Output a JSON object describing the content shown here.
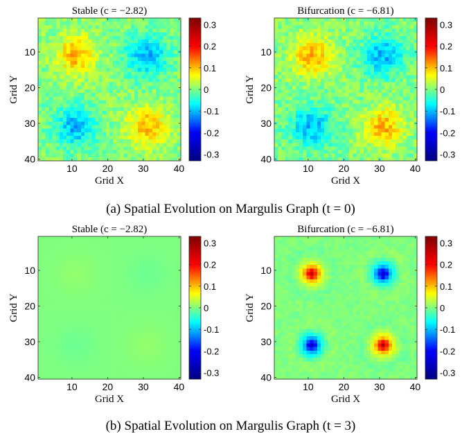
{
  "figure": {
    "caption_a": "(a) Spatial Evolution on Margulis Graph (t = 0)",
    "caption_b": "(b) Spatial Evolution on Margulis Graph (t = 3)"
  },
  "colormap": {
    "name": "jet",
    "stops": [
      "#00007f",
      "#0000ff",
      "#00ffff",
      "#ffff00",
      "#ff0000",
      "#7f0000"
    ]
  },
  "chart_data": [
    {
      "type": "heatmap",
      "panel": "a-left",
      "title": "Stable (c = −2.82)",
      "xlabel": "Grid X",
      "ylabel": "Grid Y",
      "grid_size": [
        40,
        40
      ],
      "xlim": [
        0.5,
        40.5
      ],
      "ylim": [
        0.5,
        40.5
      ],
      "x_ticks": [
        10,
        20,
        30,
        40
      ],
      "y_ticks": [
        10,
        20,
        30,
        40
      ],
      "y_axis_direction": "down",
      "color_limits": [
        -0.33,
        0.33
      ],
      "colorbar_ticks": [
        "0.3",
        "0.2",
        "0.1",
        "0",
        "-0.1",
        "-0.2",
        "-0.3"
      ],
      "field": {
        "pattern": "four blobs at (x,y)",
        "centers": [
          {
            "x": 11,
            "y": 11,
            "v": 0.13
          },
          {
            "x": 31,
            "y": 11,
            "v": -0.13
          },
          {
            "x": 11,
            "y": 31,
            "v": -0.13
          },
          {
            "x": 31,
            "y": 31,
            "v": 0.13
          }
        ],
        "noise": 0.04
      }
    },
    {
      "type": "heatmap",
      "panel": "a-right",
      "title": "Bifurcation (c = −6.81)",
      "xlabel": "Grid X",
      "ylabel": "Grid Y",
      "grid_size": [
        40,
        40
      ],
      "xlim": [
        0.5,
        40.5
      ],
      "ylim": [
        0.5,
        40.5
      ],
      "x_ticks": [
        10,
        20,
        30,
        40
      ],
      "y_ticks": [
        10,
        20,
        30,
        40
      ],
      "y_axis_direction": "down",
      "color_limits": [
        -0.33,
        0.33
      ],
      "colorbar_ticks": [
        "0.3",
        "0.2",
        "0.1",
        "0",
        "-0.1",
        "-0.2",
        "-0.3"
      ],
      "field": {
        "pattern": "four blobs at (x,y)",
        "centers": [
          {
            "x": 11,
            "y": 11,
            "v": 0.13
          },
          {
            "x": 31,
            "y": 11,
            "v": -0.13
          },
          {
            "x": 11,
            "y": 31,
            "v": -0.13
          },
          {
            "x": 31,
            "y": 31,
            "v": 0.13
          }
        ],
        "noise": 0.04
      }
    },
    {
      "type": "heatmap",
      "panel": "b-left",
      "title": "Stable (c = −2.82)",
      "xlabel": "Grid X",
      "ylabel": "Grid Y",
      "grid_size": [
        40,
        40
      ],
      "xlim": [
        0.5,
        40.5
      ],
      "ylim": [
        0.5,
        40.5
      ],
      "x_ticks": [
        10,
        20,
        30,
        40
      ],
      "y_ticks": [
        10,
        20,
        30,
        40
      ],
      "y_axis_direction": "down",
      "color_limits": [
        -0.33,
        0.33
      ],
      "colorbar_ticks": [
        "0.3",
        "0.2",
        "0.1",
        "0",
        "-0.1",
        "-0.2",
        "-0.3"
      ],
      "field": {
        "pattern": "nearly uniform",
        "centers": [
          {
            "x": 11,
            "y": 11,
            "v": 0.012
          },
          {
            "x": 31,
            "y": 11,
            "v": -0.012
          },
          {
            "x": 11,
            "y": 31,
            "v": -0.012
          },
          {
            "x": 31,
            "y": 31,
            "v": 0.012
          }
        ],
        "noise": 0.0
      }
    },
    {
      "type": "heatmap",
      "panel": "b-right",
      "title": "Bifurcation (c = −6.81)",
      "xlabel": "Grid X",
      "ylabel": "Grid Y",
      "grid_size": [
        40,
        40
      ],
      "xlim": [
        0.5,
        40.5
      ],
      "ylim": [
        0.5,
        40.5
      ],
      "x_ticks": [
        10,
        20,
        30,
        40
      ],
      "y_ticks": [
        10,
        20,
        30,
        40
      ],
      "y_axis_direction": "down",
      "color_limits": [
        -0.33,
        0.33
      ],
      "colorbar_ticks": [
        "0.3",
        "0.2",
        "0.1",
        "0",
        "-0.1",
        "-0.2",
        "-0.3"
      ],
      "field": {
        "pattern": "four sharp blobs with ripple halos",
        "centers": [
          {
            "x": 11,
            "y": 11,
            "v": 0.33
          },
          {
            "x": 31,
            "y": 11,
            "v": -0.33
          },
          {
            "x": 11,
            "y": 31,
            "v": -0.33
          },
          {
            "x": 31,
            "y": 31,
            "v": 0.33
          }
        ],
        "noise": 0.012
      }
    }
  ]
}
